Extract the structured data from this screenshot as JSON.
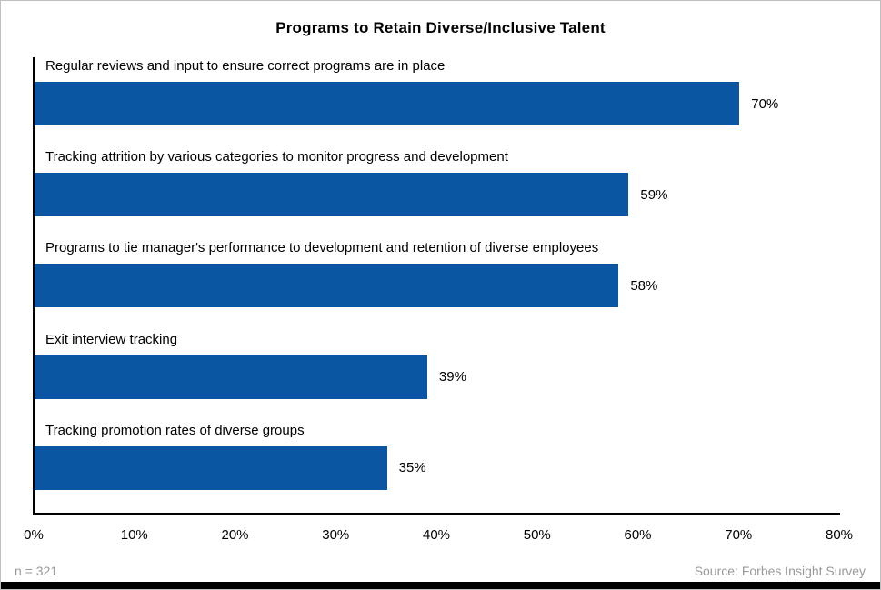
{
  "chart_data": {
    "type": "bar",
    "orientation": "horizontal",
    "title": "Programs to Retain Diverse/Inclusive Talent",
    "categories": [
      "Regular reviews and input to ensure correct programs are in place",
      "Tracking attrition by various categories to monitor progress and development",
      "Programs to tie manager's performance to development and retention of diverse employees",
      "Exit interview tracking",
      "Tracking promotion rates of diverse groups"
    ],
    "values": [
      70,
      59,
      58,
      39,
      35
    ],
    "value_labels": [
      "70%",
      "59%",
      "58%",
      "39%",
      "35%"
    ],
    "xlim": [
      0,
      80
    ],
    "x_ticks": [
      {
        "label": "0%",
        "value": 0
      },
      {
        "label": "10%",
        "value": 10
      },
      {
        "label": "20%",
        "value": 20
      },
      {
        "label": "30%",
        "value": 30
      },
      {
        "label": "40%",
        "value": 40
      },
      {
        "label": "50%",
        "value": 50
      },
      {
        "label": "60%",
        "value": 60
      },
      {
        "label": "70%",
        "value": 70
      },
      {
        "label": "80%",
        "value": 80
      }
    ],
    "bar_color": "#0B56A2",
    "grid": false,
    "legend": false
  },
  "footer": {
    "sample_note": "n = 321",
    "source": "Source: Forbes Insight Survey"
  }
}
